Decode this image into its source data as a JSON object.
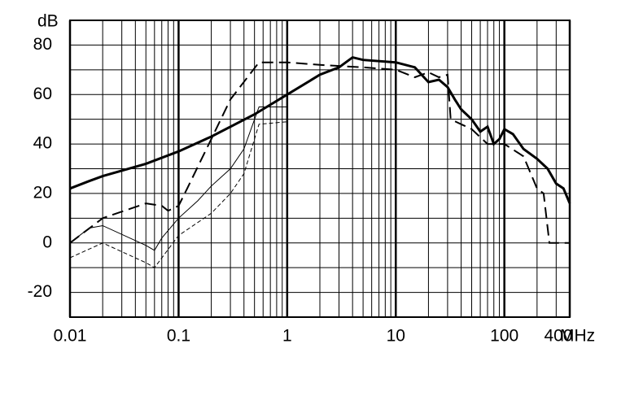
{
  "chart_data": {
    "type": "line",
    "y_label": "dB",
    "x_label": "MHz",
    "log_x": true,
    "grid": true,
    "xlim": [
      0.01,
      400
    ],
    "ylim": [
      -30,
      90
    ],
    "xticks": [
      0.01,
      0.1,
      1,
      10,
      100,
      400
    ],
    "x_minor_ticks": [
      0.02,
      0.03,
      0.04,
      0.05,
      0.06,
      0.07,
      0.08,
      0.09,
      0.2,
      0.3,
      0.4,
      0.5,
      0.6,
      0.7,
      0.8,
      0.9,
      2,
      3,
      4,
      5,
      6,
      7,
      8,
      9,
      20,
      30,
      40,
      50,
      60,
      70,
      80,
      90,
      200,
      300
    ],
    "yticks": [
      -20,
      0,
      20,
      40,
      60,
      80
    ],
    "y_minor_ticks": [
      -30,
      -10,
      10,
      30,
      50,
      70,
      90
    ],
    "series": [
      {
        "color": "#000000",
        "width": 3,
        "dash": false,
        "x": [
          0.01,
          0.015,
          0.02,
          0.05,
          0.1,
          0.2,
          0.5,
          1,
          2,
          3,
          4,
          5,
          10,
          15,
          20,
          25,
          30,
          35,
          40,
          50,
          60,
          70,
          80,
          90,
          100,
          120,
          150,
          200,
          250,
          300,
          350,
          400
        ],
        "values": [
          22,
          25,
          27,
          32,
          37,
          43,
          52,
          60,
          68,
          71,
          75,
          74,
          73,
          71,
          65,
          66,
          63,
          58,
          54,
          50,
          45,
          47,
          40,
          42,
          46,
          44,
          38,
          34,
          30,
          24,
          22,
          16
        ]
      },
      {
        "color": "#000000",
        "width": 2,
        "dash": true,
        "x": [
          0.01,
          0.02,
          0.05,
          0.07,
          0.08,
          0.1,
          0.12,
          0.2,
          0.3,
          0.55,
          1,
          2,
          5,
          10,
          15,
          20,
          25,
          30,
          32,
          40,
          50,
          70,
          100,
          150,
          200,
          230,
          260,
          400
        ],
        "values": [
          0,
          10,
          16,
          15,
          13,
          15,
          22,
          42,
          58,
          73,
          73,
          72,
          71,
          70,
          67,
          69,
          67,
          68,
          50,
          48,
          46,
          40,
          40,
          35,
          22,
          20,
          0,
          0
        ]
      },
      {
        "color": "#000000",
        "width": 1,
        "dash": false,
        "x": [
          0.01,
          0.015,
          0.02,
          0.05,
          0.06,
          0.07,
          0.1,
          0.15,
          0.2,
          0.3,
          0.4,
          0.55,
          0.6,
          1
        ],
        "values": [
          0,
          6,
          7,
          -1,
          -3,
          2,
          10,
          17,
          23,
          30,
          38,
          55,
          55,
          55
        ]
      },
      {
        "color": "#000000",
        "width": 1,
        "dash": true,
        "x": [
          0.01,
          0.02,
          0.05,
          0.06,
          0.1,
          0.2,
          0.3,
          0.4,
          0.55,
          1
        ],
        "values": [
          -6,
          0,
          -8,
          -10,
          3,
          12,
          20,
          28,
          48,
          49
        ]
      }
    ]
  }
}
